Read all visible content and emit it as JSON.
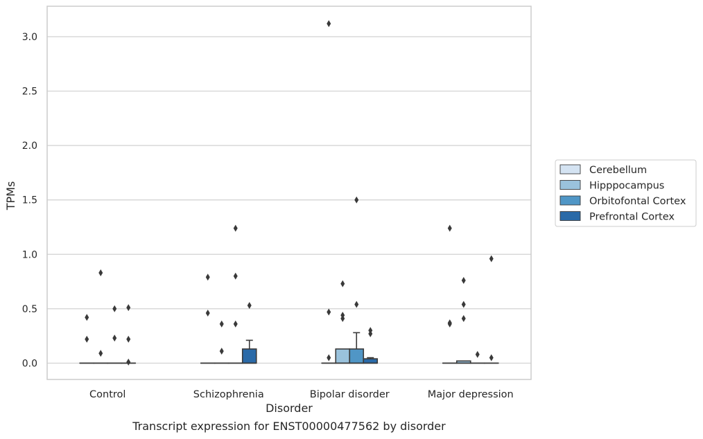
{
  "chart_data": {
    "type": "box",
    "xlabel": "Disorder",
    "ylabel": "TPMs",
    "caption": "Transcript expression for ENST00000477562 by disorder",
    "categories": [
      "Control",
      "Schizophrenia",
      "Bipolar disorder",
      "Major depression"
    ],
    "ylim": [
      -0.15,
      3.28
    ],
    "yticks": [
      0.0,
      0.5,
      1.0,
      1.5,
      2.0,
      2.5,
      3.0
    ],
    "ytick_labels": [
      "0.0",
      "0.5",
      "1.0",
      "1.5",
      "2.0",
      "2.5",
      "3.0"
    ],
    "grid": "horizontal",
    "legend_position": "right",
    "series": [
      {
        "name": "Cerebellum",
        "color": "#d4e3f2",
        "boxes": [
          {
            "q1": 0,
            "median": 0,
            "q3": 0,
            "whisker_low": 0,
            "whisker_high": 0,
            "outliers": [
              0.42,
              0.22
            ]
          },
          {
            "q1": 0,
            "median": 0,
            "q3": 0,
            "whisker_low": 0,
            "whisker_high": 0,
            "outliers": [
              0.79,
              0.46
            ]
          },
          {
            "q1": 0,
            "median": 0,
            "q3": 0,
            "whisker_low": 0,
            "whisker_high": 0,
            "outliers": [
              3.12,
              0.47,
              0.05
            ]
          },
          {
            "q1": 0,
            "median": 0,
            "q3": 0,
            "whisker_low": 0,
            "whisker_high": 0,
            "outliers": [
              1.24,
              0.36,
              0.37
            ]
          }
        ]
      },
      {
        "name": "Hipppocampus",
        "color": "#9ac2dc",
        "boxes": [
          {
            "q1": 0,
            "median": 0,
            "q3": 0,
            "whisker_low": 0,
            "whisker_high": 0,
            "outliers": [
              0.83,
              0.09
            ]
          },
          {
            "q1": 0,
            "median": 0,
            "q3": 0,
            "whisker_low": 0,
            "whisker_high": 0,
            "outliers": [
              0.11,
              0.36
            ]
          },
          {
            "q1": 0,
            "median": 0.0,
            "q3": 0.13,
            "whisker_low": 0,
            "whisker_high": 0.13,
            "outliers": [
              0.73,
              0.44,
              0.41
            ]
          },
          {
            "q1": 0,
            "median": 0.0,
            "q3": 0.02,
            "whisker_low": 0,
            "whisker_high": 0.02,
            "outliers": [
              0.76,
              0.54,
              0.41
            ]
          }
        ]
      },
      {
        "name": "Orbitofontal Cortex",
        "color": "#5096c6",
        "boxes": [
          {
            "q1": 0,
            "median": 0,
            "q3": 0,
            "whisker_low": 0,
            "whisker_high": 0,
            "outliers": [
              0.5,
              0.23
            ]
          },
          {
            "q1": 0,
            "median": 0,
            "q3": 0,
            "whisker_low": 0,
            "whisker_high": 0,
            "outliers": [
              1.24,
              0.8,
              0.36
            ]
          },
          {
            "q1": 0,
            "median": 0.0,
            "q3": 0.13,
            "whisker_low": 0,
            "whisker_high": 0.28,
            "outliers": [
              1.5,
              0.54
            ]
          },
          {
            "q1": 0,
            "median": 0,
            "q3": 0,
            "whisker_low": 0,
            "whisker_high": 0,
            "outliers": [
              0.08
            ]
          }
        ]
      },
      {
        "name": "Prefrontal Cortex",
        "color": "#2a6aa8",
        "boxes": [
          {
            "q1": 0,
            "median": 0,
            "q3": 0,
            "whisker_low": 0,
            "whisker_high": 0,
            "outliers": [
              0.51,
              0.22,
              0.01
            ]
          },
          {
            "q1": 0,
            "median": 0.0,
            "q3": 0.13,
            "whisker_low": 0,
            "whisker_high": 0.21,
            "outliers": [
              0.53
            ]
          },
          {
            "q1": 0,
            "median": 0.0,
            "q3": 0.04,
            "whisker_low": 0,
            "whisker_high": 0.05,
            "outliers": [
              0.3,
              0.27
            ]
          },
          {
            "q1": 0,
            "median": 0,
            "q3": 0,
            "whisker_low": 0,
            "whisker_high": 0,
            "outliers": [
              0.96,
              0.05
            ]
          }
        ]
      }
    ]
  }
}
